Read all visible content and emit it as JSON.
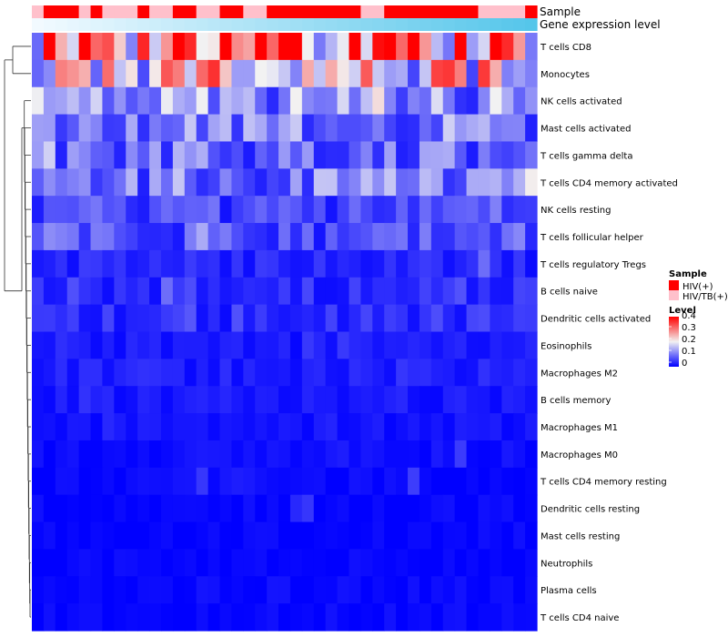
{
  "chart_data": {
    "type": "heatmap",
    "title": "",
    "annotations": [
      {
        "name": "Sample",
        "label": "Sample"
      },
      {
        "name": "Gene expression level",
        "label": "Gene expression level",
        "gradient": [
          "#f2faff",
          "#55c6ea"
        ]
      }
    ],
    "sample_groups": [
      {
        "name": "HIV(+)",
        "color": "#ff0000"
      },
      {
        "name": "HIV/TB(+)",
        "color": "#ffc0cb"
      }
    ],
    "sample_pattern": "BAAABABBBABBAABBAABBAAAAAAAABBAAAAAAAABBBBA",
    "legend": {
      "sample_title": "Sample",
      "level_title": "Level",
      "level_ticks": [
        "0.4",
        "0.3",
        "0.2",
        "0.1",
        "0"
      ],
      "level_range": [
        0,
        0.42
      ],
      "colors": {
        "low": "#0000ff",
        "mid": "#f2f2f2",
        "high": "#ff0000"
      }
    },
    "rows": [
      {
        "name": "T cells CD8",
        "base": 0.31
      },
      {
        "name": "Monocytes",
        "base": 0.22
      },
      {
        "name": "NK cells activated",
        "base": 0.12
      },
      {
        "name": "Mast cells activated",
        "base": 0.11
      },
      {
        "name": "T cells gamma delta",
        "base": 0.09
      },
      {
        "name": "T cells CD4 memory activated",
        "base": 0.1
      },
      {
        "name": "NK cells resting",
        "base": 0.06
      },
      {
        "name": "T cells follicular helper",
        "base": 0.07
      },
      {
        "name": "T cells regulatory  Tregs",
        "base": 0.03
      },
      {
        "name": "B cells naive",
        "base": 0.04
      },
      {
        "name": "Dendritic cells activated",
        "base": 0.035
      },
      {
        "name": "Eosinophils",
        "base": 0.02
      },
      {
        "name": "Macrophages M2",
        "base": 0.025
      },
      {
        "name": "B cells memory",
        "base": 0.02
      },
      {
        "name": "Macrophages M1",
        "base": 0.015
      },
      {
        "name": "Macrophages M0",
        "base": 0.012
      },
      {
        "name": "T cells CD4 memory resting",
        "base": 0.006
      },
      {
        "name": "Dendritic cells resting",
        "base": 0.004
      },
      {
        "name": "Mast cells resting",
        "base": 0.002
      },
      {
        "name": "Neutrophils",
        "base": 0.002
      },
      {
        "name": "Plasma cells",
        "base": 0.006
      },
      {
        "name": "T cells CD4 naive",
        "base": 0.004
      }
    ]
  }
}
